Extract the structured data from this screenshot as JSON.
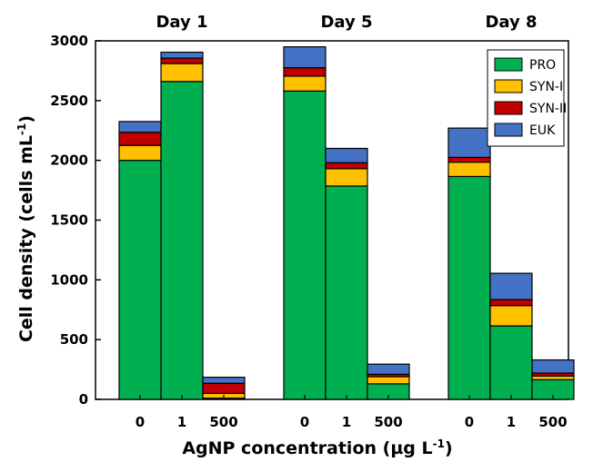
{
  "chart_data": {
    "type": "bar",
    "stacked": true,
    "ylabel": "Cell density (cells mL",
    "ylabel_sup": "-1",
    "ylabel_suffix": ")",
    "xlabel": "AgNP concentration (µg L",
    "xlabel_sup": "-1",
    "xlabel_suffix": ")",
    "ylim": [
      0,
      3000
    ],
    "yticks": [
      "0",
      "500",
      "1000",
      "1500",
      "2000",
      "2500",
      "3000"
    ],
    "groups": [
      {
        "title": "Day 1",
        "categories": [
          "0",
          "1",
          "500"
        ]
      },
      {
        "title": "Day 5",
        "categories": [
          "0",
          "1",
          "500"
        ]
      },
      {
        "title": "Day 8",
        "categories": [
          "0",
          "1",
          "500"
        ]
      }
    ],
    "series": [
      {
        "name": "PRO",
        "color": "#00b050",
        "values": [
          2000,
          2660,
          10,
          2580,
          1785,
          130,
          1865,
          615,
          165
        ]
      },
      {
        "name": "SYN-I",
        "color": "#ffc000",
        "values": [
          125,
          150,
          40,
          125,
          145,
          60,
          120,
          170,
          30
        ]
      },
      {
        "name": "SYN-II",
        "color": "#c00000",
        "values": [
          110,
          45,
          85,
          70,
          50,
          20,
          40,
          50,
          25
        ]
      },
      {
        "name": "EUK",
        "color": "#4472c4",
        "values": [
          90,
          50,
          50,
          175,
          120,
          85,
          245,
          220,
          110
        ]
      }
    ],
    "legend": "top-right",
    "grid": false
  }
}
